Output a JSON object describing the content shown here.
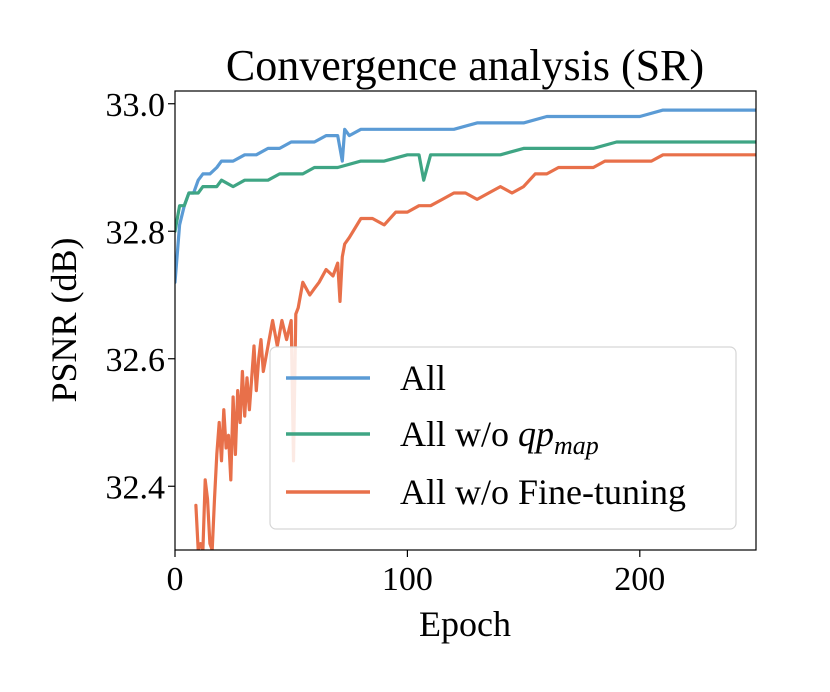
{
  "chart_data": {
    "type": "line",
    "title": "Convergence analysis (SR)",
    "xlabel": "Epoch",
    "ylabel": "PSNR (dB)",
    "xlim": [
      0,
      250
    ],
    "ylim": [
      32.3,
      33.02
    ],
    "xticks": [
      0,
      100,
      200
    ],
    "xtick_labels": [
      "0",
      "100",
      "200"
    ],
    "yticks": [
      32.4,
      32.6,
      32.8,
      33.0
    ],
    "ytick_labels": [
      "32.4",
      "32.6",
      "32.8",
      "33.0"
    ],
    "legend_position": "lower-right",
    "series": [
      {
        "name": "All",
        "legend_base": "All",
        "legend_sub": "",
        "color": "#5b9bd5",
        "x": [
          0,
          2,
          4,
          6,
          8,
          10,
          12,
          15,
          18,
          20,
          25,
          30,
          35,
          40,
          45,
          50,
          55,
          60,
          65,
          70,
          72,
          73,
          75,
          80,
          90,
          100,
          110,
          120,
          130,
          140,
          150,
          160,
          170,
          180,
          190,
          200,
          210,
          220,
          230,
          240,
          250
        ],
        "y": [
          32.72,
          32.81,
          32.84,
          32.86,
          32.86,
          32.88,
          32.89,
          32.89,
          32.9,
          32.91,
          32.91,
          32.92,
          32.92,
          32.93,
          32.93,
          32.94,
          32.94,
          32.94,
          32.95,
          32.95,
          32.91,
          32.96,
          32.95,
          32.96,
          32.96,
          32.96,
          32.96,
          32.96,
          32.97,
          32.97,
          32.97,
          32.98,
          32.98,
          32.98,
          32.98,
          32.98,
          32.99,
          32.99,
          32.99,
          32.99,
          32.99
        ]
      },
      {
        "name": "All w/o qp_map",
        "legend_base": "All w/o ",
        "legend_sub": "qp",
        "legend_subscript": "map",
        "color": "#3fa584",
        "x": [
          0,
          2,
          4,
          6,
          8,
          10,
          12,
          15,
          18,
          20,
          25,
          30,
          35,
          40,
          45,
          50,
          55,
          60,
          70,
          80,
          90,
          100,
          105,
          107,
          110,
          120,
          130,
          140,
          150,
          160,
          170,
          180,
          190,
          200,
          210,
          220,
          230,
          240,
          250
        ],
        "y": [
          32.8,
          32.84,
          32.84,
          32.86,
          32.86,
          32.86,
          32.87,
          32.87,
          32.87,
          32.88,
          32.87,
          32.88,
          32.88,
          32.88,
          32.89,
          32.89,
          32.89,
          32.9,
          32.9,
          32.91,
          32.91,
          32.92,
          32.92,
          32.88,
          32.92,
          32.92,
          32.92,
          32.92,
          32.93,
          32.93,
          32.93,
          32.93,
          32.94,
          32.94,
          32.94,
          32.94,
          32.94,
          32.94,
          32.94
        ]
      },
      {
        "name": "All w/o Fine-tuning",
        "legend_base": "All w/o Fine-tuning",
        "legend_sub": "",
        "color": "#e8704a",
        "x": [
          9,
          10,
          11,
          12,
          13,
          14,
          15,
          16,
          17,
          18,
          19,
          20,
          21,
          22,
          23,
          24,
          25,
          26,
          27,
          28,
          29,
          30,
          31,
          32,
          33,
          34,
          35,
          36,
          37,
          38,
          40,
          42,
          44,
          46,
          48,
          50,
          51,
          52,
          53,
          55,
          58,
          60,
          62,
          65,
          68,
          70,
          71,
          72,
          73,
          75,
          80,
          85,
          90,
          95,
          100,
          105,
          110,
          115,
          120,
          125,
          130,
          135,
          140,
          145,
          150,
          155,
          160,
          165,
          170,
          175,
          180,
          185,
          190,
          195,
          200,
          205,
          210,
          215,
          220,
          225,
          230,
          235,
          240,
          245,
          250
        ],
        "y": [
          32.37,
          32.3,
          32.31,
          32.3,
          32.41,
          32.38,
          32.31,
          32.3,
          32.38,
          32.45,
          32.5,
          32.44,
          32.52,
          32.46,
          32.48,
          32.41,
          32.54,
          32.45,
          32.55,
          32.5,
          32.58,
          32.51,
          32.57,
          32.52,
          32.57,
          32.62,
          32.55,
          32.6,
          32.63,
          32.58,
          32.62,
          32.66,
          32.62,
          32.66,
          32.63,
          32.66,
          32.44,
          32.67,
          32.68,
          32.72,
          32.7,
          32.71,
          32.72,
          32.74,
          32.73,
          32.75,
          32.69,
          32.76,
          32.78,
          32.79,
          32.82,
          32.82,
          32.81,
          32.83,
          32.83,
          32.84,
          32.84,
          32.85,
          32.86,
          32.86,
          32.85,
          32.86,
          32.87,
          32.86,
          32.87,
          32.89,
          32.89,
          32.9,
          32.9,
          32.9,
          32.9,
          32.91,
          32.91,
          32.91,
          32.91,
          32.91,
          32.92,
          32.92,
          32.92,
          32.92,
          32.92,
          32.92,
          32.92,
          32.92,
          32.92
        ]
      }
    ]
  }
}
